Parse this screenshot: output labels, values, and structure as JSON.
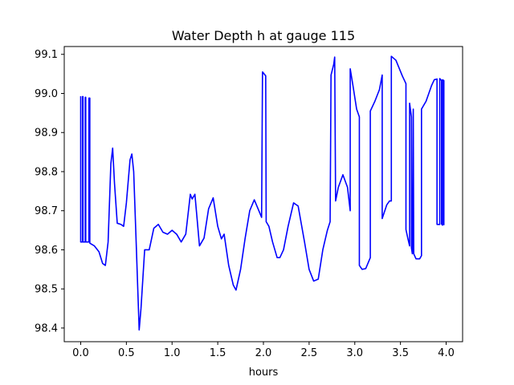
{
  "chart_data": {
    "type": "line",
    "title": "Water Depth h at gauge 115",
    "xlabel": "hours",
    "ylabel": "",
    "xlim": [
      -0.18,
      4.18
    ],
    "ylim": [
      98.365,
      99.12
    ],
    "x_ticks": [
      0.0,
      0.5,
      1.0,
      1.5,
      2.0,
      2.5,
      3.0,
      3.5,
      4.0
    ],
    "x_tick_labels": [
      "0.0",
      "0.5",
      "1.0",
      "1.5",
      "2.0",
      "2.5",
      "3.0",
      "3.5",
      "4.0"
    ],
    "y_ticks": [
      98.4,
      98.5,
      98.6,
      98.7,
      98.8,
      98.9,
      99.0,
      99.1
    ],
    "y_tick_labels": [
      "98.4",
      "98.5",
      "98.6",
      "98.7",
      "98.8",
      "98.9",
      "99.0",
      "99.1"
    ],
    "grid": false,
    "series": [
      {
        "color": "#0000ff",
        "points": [
          [
            0.0,
            98.993
          ],
          [
            0.0,
            98.62
          ],
          [
            0.02,
            98.62
          ],
          [
            0.02,
            98.992
          ],
          [
            0.025,
            98.992
          ],
          [
            0.025,
            98.62
          ],
          [
            0.05,
            98.62
          ],
          [
            0.05,
            98.99
          ],
          [
            0.055,
            98.99
          ],
          [
            0.055,
            98.62
          ],
          [
            0.09,
            98.62
          ],
          [
            0.09,
            98.988
          ],
          [
            0.1,
            98.988
          ],
          [
            0.1,
            98.617
          ],
          [
            0.15,
            98.61
          ],
          [
            0.2,
            98.595
          ],
          [
            0.24,
            98.565
          ],
          [
            0.27,
            98.56
          ],
          [
            0.3,
            98.62
          ],
          [
            0.33,
            98.82
          ],
          [
            0.35,
            98.86
          ],
          [
            0.37,
            98.77
          ],
          [
            0.4,
            98.668
          ],
          [
            0.44,
            98.665
          ],
          [
            0.47,
            98.66
          ],
          [
            0.5,
            98.72
          ],
          [
            0.54,
            98.83
          ],
          [
            0.56,
            98.845
          ],
          [
            0.58,
            98.8
          ],
          [
            0.61,
            98.6
          ],
          [
            0.64,
            98.395
          ],
          [
            0.66,
            98.45
          ],
          [
            0.7,
            98.6
          ],
          [
            0.75,
            98.6
          ],
          [
            0.8,
            98.655
          ],
          [
            0.85,
            98.665
          ],
          [
            0.9,
            98.645
          ],
          [
            0.95,
            98.64
          ],
          [
            1.0,
            98.65
          ],
          [
            1.05,
            98.64
          ],
          [
            1.1,
            98.62
          ],
          [
            1.15,
            98.64
          ],
          [
            1.2,
            98.742
          ],
          [
            1.22,
            98.73
          ],
          [
            1.25,
            98.742
          ],
          [
            1.27,
            98.69
          ],
          [
            1.3,
            98.61
          ],
          [
            1.35,
            98.63
          ],
          [
            1.4,
            98.705
          ],
          [
            1.45,
            98.733
          ],
          [
            1.5,
            98.66
          ],
          [
            1.54,
            98.628
          ],
          [
            1.57,
            98.64
          ],
          [
            1.62,
            98.56
          ],
          [
            1.67,
            98.51
          ],
          [
            1.7,
            98.497
          ],
          [
            1.75,
            98.55
          ],
          [
            1.8,
            98.63
          ],
          [
            1.85,
            98.7
          ],
          [
            1.9,
            98.728
          ],
          [
            1.95,
            98.7
          ],
          [
            1.98,
            98.683
          ],
          [
            1.99,
            99.055
          ],
          [
            2.025,
            99.045
          ],
          [
            2.03,
            98.672
          ],
          [
            2.06,
            98.66
          ],
          [
            2.1,
            98.62
          ],
          [
            2.15,
            98.58
          ],
          [
            2.18,
            98.58
          ],
          [
            2.22,
            98.6
          ],
          [
            2.27,
            98.66
          ],
          [
            2.33,
            98.72
          ],
          [
            2.38,
            98.712
          ],
          [
            2.45,
            98.62
          ],
          [
            2.5,
            98.55
          ],
          [
            2.55,
            98.52
          ],
          [
            2.6,
            98.525
          ],
          [
            2.65,
            98.6
          ],
          [
            2.7,
            98.65
          ],
          [
            2.73,
            98.672
          ],
          [
            2.74,
            99.047
          ],
          [
            2.77,
            99.075
          ],
          [
            2.78,
            99.093
          ],
          [
            2.79,
            98.725
          ],
          [
            2.82,
            98.76
          ],
          [
            2.87,
            98.792
          ],
          [
            2.92,
            98.76
          ],
          [
            2.95,
            98.7
          ],
          [
            2.95,
            99.063
          ],
          [
            2.98,
            99.02
          ],
          [
            3.02,
            98.96
          ],
          [
            3.05,
            98.94
          ],
          [
            3.05,
            98.56
          ],
          [
            3.08,
            98.55
          ],
          [
            3.12,
            98.552
          ],
          [
            3.17,
            98.58
          ],
          [
            3.17,
            98.955
          ],
          [
            3.22,
            98.98
          ],
          [
            3.27,
            99.01
          ],
          [
            3.3,
            99.047
          ],
          [
            3.3,
            98.68
          ],
          [
            3.35,
            98.715
          ],
          [
            3.38,
            98.725
          ],
          [
            3.4,
            98.725
          ],
          [
            3.4,
            99.095
          ],
          [
            3.45,
            99.085
          ],
          [
            3.52,
            99.045
          ],
          [
            3.56,
            99.025
          ],
          [
            3.56,
            98.652
          ],
          [
            3.58,
            98.63
          ],
          [
            3.6,
            98.61
          ],
          [
            3.6,
            98.975
          ],
          [
            3.62,
            98.94
          ],
          [
            3.62,
            98.605
          ],
          [
            3.63,
            98.59
          ],
          [
            3.64,
            98.96
          ],
          [
            3.645,
            98.59
          ],
          [
            3.67,
            98.577
          ],
          [
            3.71,
            98.577
          ],
          [
            3.73,
            98.585
          ],
          [
            3.73,
            98.96
          ],
          [
            3.78,
            98.98
          ],
          [
            3.84,
            99.02
          ],
          [
            3.87,
            99.035
          ],
          [
            3.9,
            99.037
          ],
          [
            3.9,
            98.665
          ],
          [
            3.93,
            98.665
          ],
          [
            3.93,
            99.038
          ],
          [
            3.95,
            99.033
          ],
          [
            3.95,
            98.666
          ],
          [
            3.96,
            98.663
          ],
          [
            3.96,
            99.035
          ],
          [
            3.975,
            99.033
          ],
          [
            3.975,
            98.663
          ]
        ]
      }
    ]
  }
}
